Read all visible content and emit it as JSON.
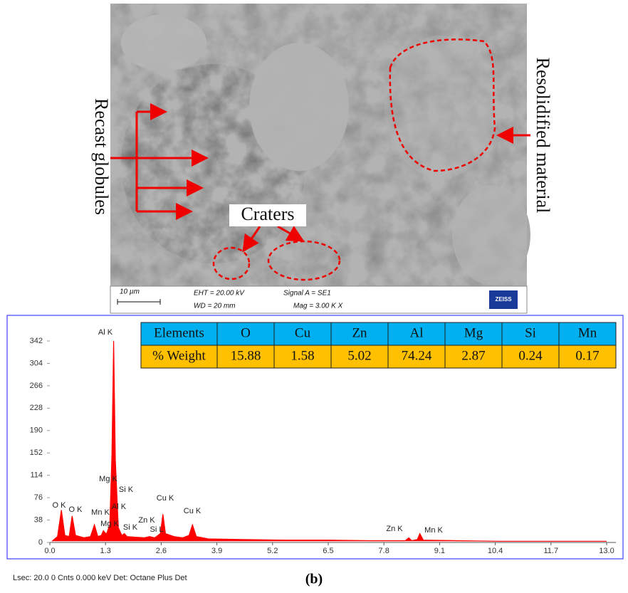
{
  "sem": {
    "left_label": "Recast globules",
    "right_label": "Resolidified material",
    "craters_label": "Craters",
    "scale": "10 µm",
    "eht": "EHT = 20.00 kV",
    "wd": "WD =  20  mm",
    "signal": "Signal A = SE1",
    "mag": "Mag =  3.00 K X",
    "logo": "ZEISS"
  },
  "table": {
    "header": [
      "Elements",
      "O",
      "Cu",
      "Zn",
      "Al",
      "Mg",
      "Si",
      "Mn"
    ],
    "row_label": "% Weight",
    "values": [
      15.88,
      1.58,
      5.02,
      74.24,
      2.87,
      0.24,
      0.17
    ]
  },
  "chart_data": {
    "type": "area",
    "color": "#ff0000",
    "x": [
      0.05,
      0.18,
      0.27,
      0.35,
      0.45,
      0.52,
      0.6,
      0.8,
      0.95,
      1.04,
      1.12,
      1.2,
      1.25,
      1.32,
      1.4,
      1.45,
      1.49,
      1.53,
      1.6,
      1.68,
      1.74,
      1.8,
      2.0,
      2.2,
      2.33,
      2.45,
      2.58,
      2.64,
      2.7,
      2.9,
      3.1,
      3.25,
      3.33,
      3.42,
      3.7,
      4.5,
      5.5,
      6.5,
      7.5,
      8.3,
      8.38,
      8.45,
      8.58,
      8.64,
      8.72,
      9.5,
      10.5,
      11.5,
      12.5,
      13.0
    ],
    "values": [
      2,
      10,
      55,
      12,
      10,
      45,
      12,
      8,
      10,
      30,
      10,
      12,
      20,
      14,
      30,
      150,
      342,
      140,
      25,
      12,
      15,
      10,
      9,
      8,
      10,
      8,
      15,
      48,
      15,
      10,
      8,
      12,
      30,
      10,
      6,
      5,
      4,
      4,
      3,
      3,
      8,
      3,
      5,
      15,
      4,
      3,
      2,
      2,
      2,
      2
    ],
    "annotations": [
      "Al K",
      "Mg K",
      "Si K",
      "Cu K",
      "O K",
      "O  K",
      "Mn K",
      "Al K",
      "Zn K",
      "Mg K",
      "Si K",
      "Si L",
      "Cu K",
      "Zn K",
      "Mn K"
    ],
    "xlim": [
      0,
      13
    ],
    "ylim": [
      0,
      342
    ],
    "xticks": [
      {
        "value": 0,
        "label": "0.0"
      },
      1.3,
      2.6,
      3.9,
      5.2,
      6.5,
      7.8,
      9.1,
      10.4,
      11.7,
      {
        "value": 13,
        "label": "13.0"
      }
    ],
    "yticks": [
      0,
      38,
      76,
      114,
      152,
      190,
      228,
      266,
      304,
      342
    ],
    "footer": "Lsec: 20.0 0 Cnts  0.000 keV Det: Octane Plus Det"
  },
  "caption": "(b)"
}
